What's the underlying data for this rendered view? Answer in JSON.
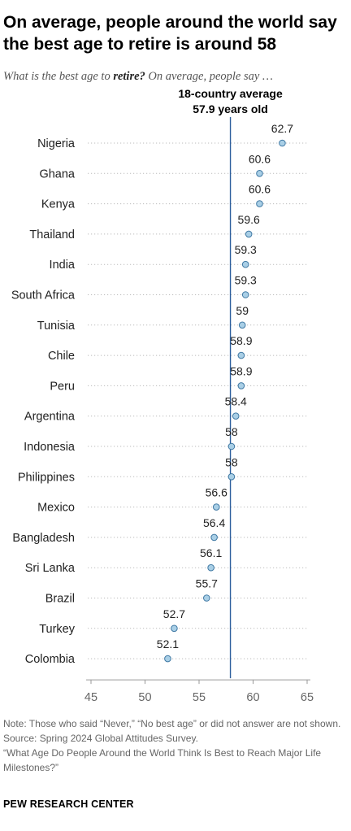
{
  "header": {
    "title": "On average, people around the world say the best age to retire is around 58",
    "subtitle_pre": "What is the best age to ",
    "subtitle_bold": "retire?",
    "subtitle_post": " On average, people say …"
  },
  "chart_data": {
    "type": "scatter",
    "orientation": "horizontal dot plot",
    "categories": [
      "Nigeria",
      "Ghana",
      "Kenya",
      "Thailand",
      "India",
      "South Africa",
      "Tunisia",
      "Chile",
      "Peru",
      "Argentina",
      "Indonesia",
      "Philippines",
      "Mexico",
      "Bangladesh",
      "Sri Lanka",
      "Brazil",
      "Turkey",
      "Colombia"
    ],
    "values": [
      62.7,
      60.6,
      60.6,
      59.6,
      59.3,
      59.3,
      59,
      58.9,
      58.9,
      58.4,
      58,
      58,
      56.6,
      56.4,
      56.1,
      55.7,
      52.7,
      52.1
    ],
    "value_labels": [
      "62.7",
      "60.6",
      "60.6",
      "59.6",
      "59.3",
      "59.3",
      "59",
      "58.9",
      "58.9",
      "58.4",
      "58",
      "58",
      "56.6",
      "56.4",
      "56.1",
      "55.7",
      "52.7",
      "52.1"
    ],
    "xlim": [
      45,
      65
    ],
    "xticks": [
      "45",
      "50",
      "55",
      "60",
      "65"
    ],
    "reference_line": {
      "value": 57.9,
      "label_line1": "18-country average",
      "label_line2": "57.9 years old"
    },
    "grid": "dotted row guides",
    "colors": {
      "dot_fill": "#a9cfe6",
      "dot_stroke": "#3f78a3",
      "reference_line": "#2b5d9c",
      "guide": "#bbbbbb"
    }
  },
  "footer": {
    "note": "Note: Those who said “Never,” “No best age” or did not answer are not shown.",
    "source": "Source: Spring 2024 Global Attitudes Survey.",
    "report": "“What Age Do People Around the World Think Is Best to Reach Major Life Milestones?”",
    "brand": "PEW RESEARCH CENTER"
  }
}
